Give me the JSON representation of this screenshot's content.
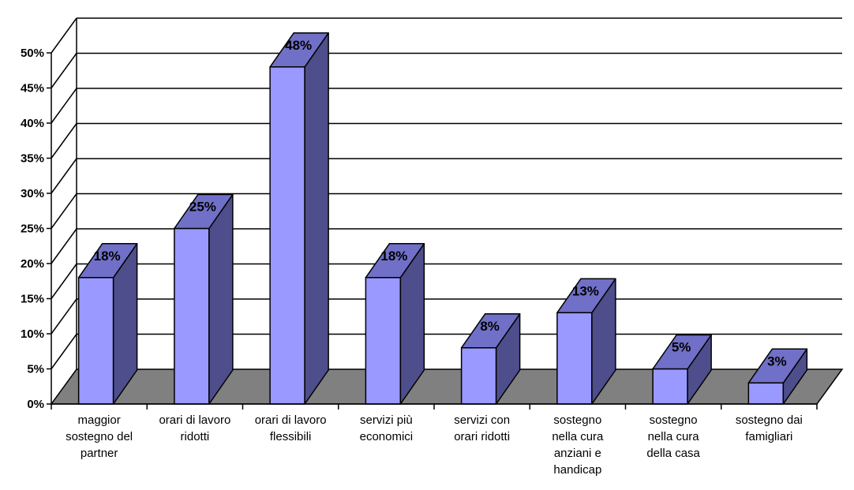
{
  "chart_data": {
    "type": "bar",
    "title": "",
    "xlabel": "",
    "ylabel": "",
    "ylim": [
      0,
      50
    ],
    "grid": true,
    "legend": "none",
    "y_ticks": [
      "0%",
      "5%",
      "10%",
      "15%",
      "20%",
      "25%",
      "30%",
      "35%",
      "40%",
      "45%",
      "50%"
    ],
    "categories": [
      [
        "maggior",
        "sostegno del",
        "partner"
      ],
      [
        "orari di lavoro",
        "ridotti"
      ],
      [
        "orari di lavoro",
        "flessibili"
      ],
      [
        "servizi più",
        "economici"
      ],
      [
        "servizi con",
        "orari ridotti"
      ],
      [
        "sostegno",
        "nella cura",
        "anziani e",
        "handicap"
      ],
      [
        "sostegno",
        "nella cura",
        "della casa"
      ],
      [
        "sostegno dai",
        "famigliari"
      ]
    ],
    "values": [
      18,
      25,
      48,
      18,
      8,
      13,
      5,
      3
    ],
    "data_labels": [
      "18%",
      "25%",
      "48%",
      "18%",
      "8%",
      "13%",
      "5%",
      "3%"
    ],
    "colors": {
      "bar_front": "#9999ff",
      "bar_top": "#7070c8",
      "bar_side": "#4e4e8c",
      "floor": "#808080",
      "grid": "#000000"
    }
  }
}
